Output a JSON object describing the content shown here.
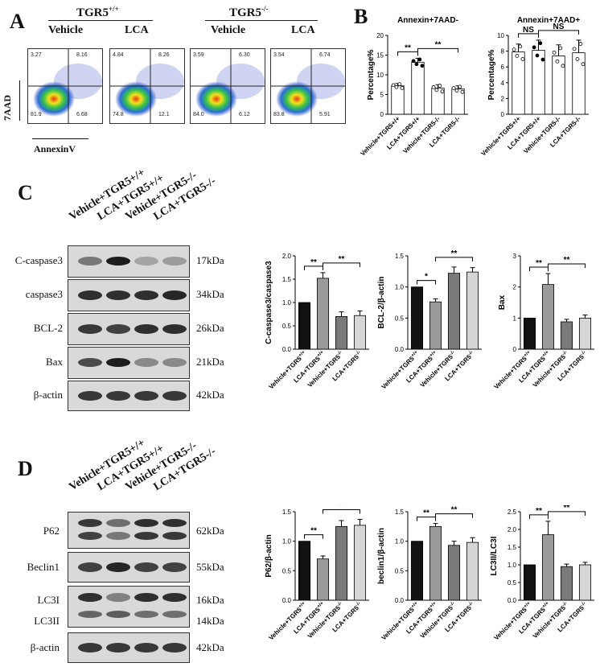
{
  "panelA": {
    "letter": "A",
    "group1_title": "TGR5",
    "group1_sup": "+/+",
    "group2_title": "TGR5",
    "group2_sup": "-/-",
    "col_labels": [
      "Vehicle",
      "LCA",
      "Vehicle",
      "LCA"
    ],
    "y_axis": "7AAD",
    "x_axis": "AnnexinV",
    "plots": [
      {
        "ul": "3.27",
        "ur": "8.16",
        "ll": "81.9",
        "lr": "6.68"
      },
      {
        "ul": "4.84",
        "ur": "8.26",
        "ll": "74.8",
        "lr": "12.1"
      },
      {
        "ul": "3.59",
        "ur": "6.30",
        "ll": "84.0",
        "lr": "6.12"
      },
      {
        "ul": "3.54",
        "ur": "6.74",
        "ll": "83.8",
        "lr": "5.91"
      }
    ]
  },
  "panelB": {
    "letter": "B",
    "ylabel": "Percentage%"
  },
  "panelC": {
    "letter": "C",
    "lanes": [
      "Vehicle+TGR5+/+",
      "LCA+TGR5+/+",
      "Vehicle+TGR5-/-",
      "LCA+TGR5-/-"
    ],
    "rows": [
      {
        "name": "C-caspase3",
        "kda": "17kDa",
        "intens": [
          0.45,
          0.95,
          0.2,
          0.25
        ]
      },
      {
        "name": "caspase3",
        "kda": "34kDa",
        "intens": [
          0.85,
          0.85,
          0.85,
          0.9
        ]
      },
      {
        "name": "BCL-2",
        "kda": "26kDa",
        "intens": [
          0.8,
          0.75,
          0.85,
          0.85
        ]
      },
      {
        "name": "Bax",
        "kda": "21kDa",
        "intens": [
          0.7,
          0.95,
          0.35,
          0.35
        ]
      },
      {
        "name": "β-actin",
        "kda": "42kDa",
        "intens": [
          0.8,
          0.8,
          0.8,
          0.8
        ]
      }
    ]
  },
  "panelD": {
    "letter": "D",
    "lanes": [
      "Vehicle+TGR5+/+",
      "LCA+TGR5+/+",
      "Vehicle+TGR5-/-",
      "LCA+TGR5-/-"
    ],
    "rows": [
      {
        "name": "P62",
        "kda": "62kDa"
      },
      {
        "name": "Beclin1",
        "kda": "55kDa"
      },
      {
        "name": "LC3I",
        "kda": "16kDa"
      },
      {
        "name": "LC3II",
        "kda": "14kDa"
      },
      {
        "name": "β-actin",
        "kda": "42kDa"
      }
    ]
  },
  "chart_data": [
    {
      "type": "bar",
      "title": "Annexin+7AAD-",
      "ylabel": "Percentage%",
      "ylim": [
        0,
        20
      ],
      "yticks": [
        0,
        5,
        10,
        15,
        20
      ],
      "categories": [
        "Vehicle+TGR5+/+",
        "LCA+TGR5+/+",
        "Vehicle+TGR5-/-",
        "LCA+TGR5-/-"
      ],
      "values": [
        7.2,
        13.2,
        6.6,
        6.4
      ],
      "errors": [
        0.6,
        1.0,
        0.9,
        0.8
      ],
      "colors": [
        "#ffffff",
        "#ffffff",
        "#ffffff",
        "#ffffff"
      ],
      "sig": [
        {
          "a": 0,
          "b": 1,
          "text": "**"
        },
        {
          "a": 1,
          "b": 3,
          "text": "**"
        }
      ]
    },
    {
      "type": "bar",
      "title": "Annexin+7AAD+",
      "ylabel": "Percentage%",
      "ylim": [
        0,
        10
      ],
      "yticks": [
        0,
        2,
        4,
        6,
        8,
        10
      ],
      "categories": [
        "Vehicle+TGR5+/+",
        "LCA+TGR5+/+",
        "Vehicle+TGR5-/-",
        "LCA+TGR5-/-"
      ],
      "values": [
        7.9,
        8.1,
        7.4,
        7.8
      ],
      "errors": [
        1.0,
        1.3,
        1.4,
        1.6
      ],
      "colors": [
        "#ffffff",
        "#ffffff",
        "#ffffff",
        "#ffffff"
      ],
      "sig": [
        {
          "a": 0,
          "b": 1,
          "text": "NS"
        },
        {
          "a": 1,
          "b": 3,
          "text": "NS"
        }
      ]
    },
    {
      "type": "bar",
      "ylabel": "C-caspase3/caspase3",
      "ylim": [
        0,
        2.0
      ],
      "yticks": [
        0.0,
        0.5,
        1.0,
        1.5,
        2.0
      ],
      "categories": [
        "Vehicle+TGR5+/+",
        "LCA+TGR5+/+",
        "Vehicle+TGR5-/-",
        "LCA+TGR5-/-"
      ],
      "values": [
        1.0,
        1.52,
        0.7,
        0.72
      ],
      "errors": [
        0,
        0.12,
        0.1,
        0.1
      ],
      "colors": [
        "#111111",
        "#9a9a9a",
        "#7a7a7a",
        "#d6d6d6"
      ],
      "sig": [
        {
          "a": 0,
          "b": 1,
          "text": "**"
        },
        {
          "a": 1,
          "b": 3,
          "text": "**"
        }
      ]
    },
    {
      "type": "bar",
      "ylabel": "BCL-2/β-actin",
      "ylim": [
        0,
        1.5
      ],
      "yticks": [
        0.0,
        0.5,
        1.0,
        1.5
      ],
      "categories": [
        "Vehicle+TGR5+/+",
        "LCA+TGR5+/+",
        "Vehicle+TGR5-/-",
        "LCA+TGR5-/-"
      ],
      "values": [
        1.0,
        0.76,
        1.22,
        1.24
      ],
      "errors": [
        0,
        0.05,
        0.1,
        0.07
      ],
      "colors": [
        "#111111",
        "#9a9a9a",
        "#7a7a7a",
        "#d6d6d6"
      ],
      "sig": [
        {
          "a": 0,
          "b": 1,
          "text": "*"
        },
        {
          "a": 1,
          "b": 3,
          "text": "**"
        }
      ]
    },
    {
      "type": "bar",
      "ylabel": "Bax",
      "ylim": [
        0,
        3
      ],
      "yticks": [
        0,
        1,
        2,
        3
      ],
      "categories": [
        "Vehicle+TGR5+/+",
        "LCA+TGR5+/+",
        "Vehicle+TGR5-/-",
        "LCA+TGR5-/-"
      ],
      "values": [
        1.0,
        2.08,
        0.88,
        1.0
      ],
      "errors": [
        0,
        0.35,
        0.08,
        0.1
      ],
      "colors": [
        "#111111",
        "#9a9a9a",
        "#7a7a7a",
        "#d6d6d6"
      ],
      "sig": [
        {
          "a": 0,
          "b": 1,
          "text": "**"
        },
        {
          "a": 1,
          "b": 3,
          "text": "**"
        }
      ]
    },
    {
      "type": "bar",
      "ylabel": "P62/β-actin",
      "ylim": [
        0,
        1.5
      ],
      "yticks": [
        0.0,
        0.5,
        1.0,
        1.5
      ],
      "categories": [
        "Vehicle+TGR5+/+",
        "LCA+TGR5+/+",
        "Vehicle+TGR5-/-",
        "LCA+TGR5-/-"
      ],
      "values": [
        1.0,
        0.7,
        1.25,
        1.27
      ],
      "errors": [
        0,
        0.05,
        0.1,
        0.1
      ],
      "colors": [
        "#111111",
        "#9a9a9a",
        "#7a7a7a",
        "#d6d6d6"
      ],
      "sig": [
        {
          "a": 0,
          "b": 1,
          "text": "**"
        },
        {
          "a": 1,
          "b": 3,
          "text": "**"
        }
      ]
    },
    {
      "type": "bar",
      "ylabel": "beclin1/β-actin",
      "ylim": [
        0,
        1.5
      ],
      "yticks": [
        0.0,
        0.5,
        1.0,
        1.5
      ],
      "categories": [
        "Vehicle+TGR5+/+",
        "LCA+TGR5+/+",
        "Vehicle+TGR5-/-",
        "LCA+TGR5-/-"
      ],
      "values": [
        1.0,
        1.25,
        0.93,
        0.98
      ],
      "errors": [
        0,
        0.05,
        0.07,
        0.08
      ],
      "colors": [
        "#111111",
        "#9a9a9a",
        "#7a7a7a",
        "#d6d6d6"
      ],
      "sig": [
        {
          "a": 0,
          "b": 1,
          "text": "**"
        },
        {
          "a": 1,
          "b": 3,
          "text": "**"
        }
      ]
    },
    {
      "type": "bar",
      "ylabel": "LC3II/LC3I",
      "ylim": [
        0,
        2.5
      ],
      "yticks": [
        0.0,
        0.5,
        1.0,
        1.5,
        2.0,
        2.5
      ],
      "categories": [
        "Vehicle+TGR5+/+",
        "LCA+TGR5+/+",
        "Vehicle+TGR5-/-",
        "LCA+TGR5-/-"
      ],
      "values": [
        1.0,
        1.85,
        0.95,
        1.0
      ],
      "errors": [
        0,
        0.38,
        0.07,
        0.07
      ],
      "colors": [
        "#111111",
        "#9a9a9a",
        "#7a7a7a",
        "#d6d6d6"
      ],
      "sig": [
        {
          "a": 0,
          "b": 1,
          "text": "**"
        },
        {
          "a": 1,
          "b": 3,
          "text": "**"
        }
      ]
    }
  ]
}
